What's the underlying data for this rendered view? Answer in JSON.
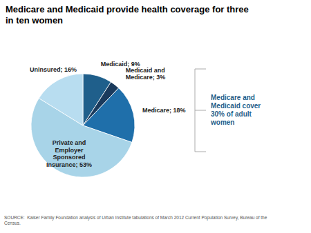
{
  "chart_data": {
    "type": "pie",
    "title": "Medicare and Medicaid provide health coverage for three\nin ten women",
    "categories": [
      "Medicaid; 9%",
      "Medicaid and\nMedicare; 3%",
      "Medicare; 18%",
      "Private and\nEmployer\nSponsored\nInsurance; 53%",
      "Uninsured; 16%"
    ],
    "values": [
      9,
      3,
      18,
      53,
      16
    ],
    "colors": [
      "#1f5f8b",
      "#1a3a5c",
      "#1f6faa",
      "#a8d4e8",
      "#b8ddf0"
    ],
    "annotations": [
      {
        "text": "Medicare and\nMedicaid cover\n30% of adult\nwomen",
        "color": "#1f5f8b"
      },
      {
        "text": "SOURCE:  Kaiser Family Foundation analysis of Urban Institute tabulations of March 2012 Current Population Survey, Bureau of the\nCensus."
      }
    ]
  }
}
